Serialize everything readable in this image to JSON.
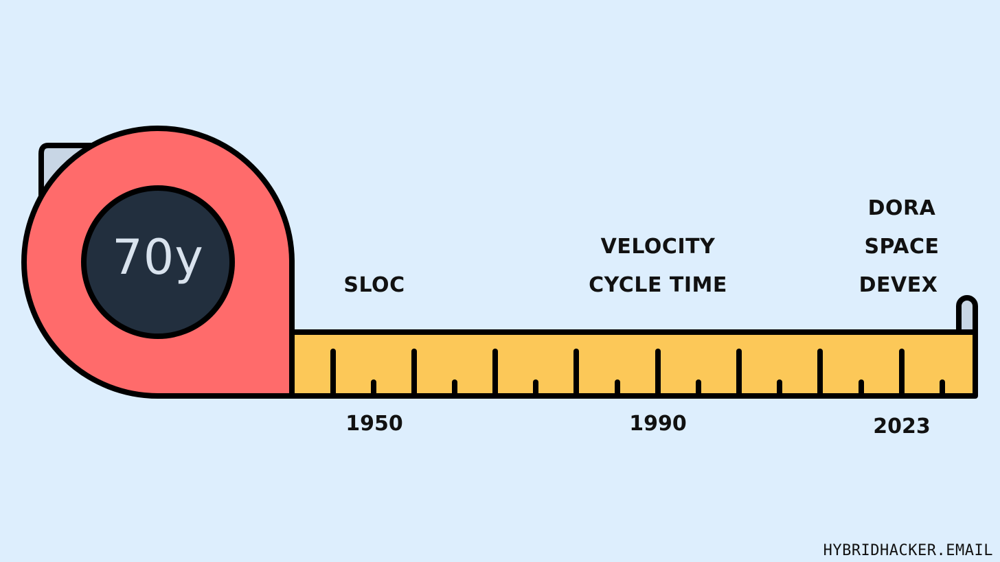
{
  "tape_measure": {
    "center_label": "70y",
    "body_color": "#ff6b6b",
    "center_color": "#222f3e",
    "tape_color": "#fcc858",
    "hook_color": "#c8d6e5",
    "outline_color": "#000000"
  },
  "timeline": [
    {
      "year": "1950",
      "metrics": [
        "SLOC"
      ]
    },
    {
      "year": "1990",
      "metrics": [
        "VELOCITY",
        "CYCLE TIME"
      ]
    },
    {
      "year": "2023",
      "metrics": [
        "DORA",
        "SPACE",
        "DEVEX"
      ]
    }
  ],
  "footer": {
    "brand": "HYBRIDHACKER.EMAIL"
  },
  "background_color": "#ddeefd"
}
